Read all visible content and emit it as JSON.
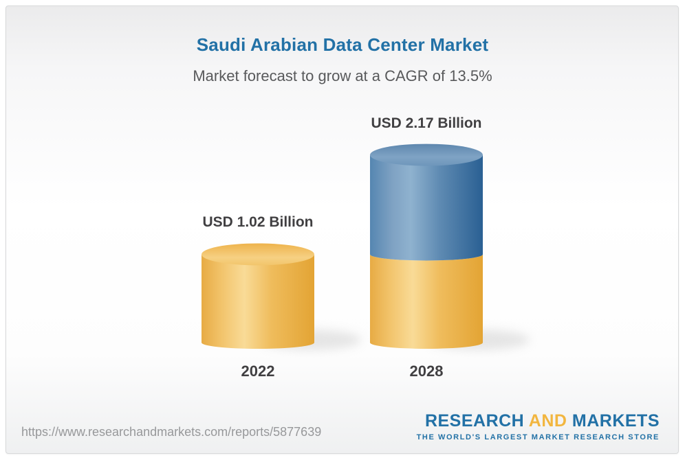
{
  "header": {
    "title": "Saudi Arabian Data Center Market",
    "subtitle": "Market forecast to grow at a CAGR of 13.5%"
  },
  "chart_data": {
    "type": "bar",
    "style": "3d-cylinder",
    "title": "Saudi Arabian Data Center Market",
    "subtitle": "Market forecast to grow at a CAGR of 13.5%",
    "unit": "USD Billion",
    "cagr_percent": 13.5,
    "categories": [
      "2022",
      "2028"
    ],
    "values": [
      1.02,
      2.17
    ],
    "value_labels": [
      "USD 1.02 Billion",
      "USD 2.17 Billion"
    ],
    "ylim": [
      0,
      2.4
    ],
    "legend": "none",
    "grid": "off",
    "bars": [
      {
        "category": "2022",
        "total": 1.02,
        "label": "USD 1.02 Billion",
        "segments": [
          {
            "value": 1.02,
            "color_key": "gold"
          }
        ]
      },
      {
        "category": "2028",
        "total": 2.17,
        "label": "USD 2.17 Billion",
        "segments": [
          {
            "value": 1.02,
            "color_key": "gold"
          },
          {
            "value": 1.15,
            "color_key": "blue"
          }
        ]
      }
    ],
    "palette": {
      "gold_body": [
        [
          0,
          "#E7AB44"
        ],
        [
          0.18,
          "#F2C46C"
        ],
        [
          0.38,
          "#F9DB97"
        ],
        [
          0.62,
          "#EFBC5C"
        ],
        [
          1,
          "#E3A434"
        ]
      ],
      "gold_top": [
        [
          0,
          "#EEB34C"
        ],
        [
          0.65,
          "#F6D083"
        ],
        [
          1,
          "#F2C56B"
        ]
      ],
      "blue_body": [
        [
          0,
          "#5586B1"
        ],
        [
          0.2,
          "#7FA2C3"
        ],
        [
          0.36,
          "#8FB2CF"
        ],
        [
          0.62,
          "#5E8AB2"
        ],
        [
          1,
          "#2A6093"
        ]
      ],
      "blue_top": [
        [
          0,
          "#5E87AE"
        ],
        [
          0.6,
          "#7FA3C4"
        ],
        [
          1,
          "#6E96BB"
        ]
      ],
      "shadow": "#c9c9c9"
    }
  },
  "footer": {
    "url": "https://www.researchandmarkets.com/reports/5877639",
    "logo": {
      "word1": "RESEARCH",
      "word2": "AND",
      "word3": "MARKETS",
      "tagline": "THE WORLD'S LARGEST MARKET RESEARCH STORE",
      "blue": "#2271A6",
      "accent": "#F2B63F"
    }
  },
  "colors": {
    "title_blue": "#2271A6",
    "text_dark": "#414042",
    "subtitle_gray": "#58595B",
    "url_gray": "#97989A"
  }
}
